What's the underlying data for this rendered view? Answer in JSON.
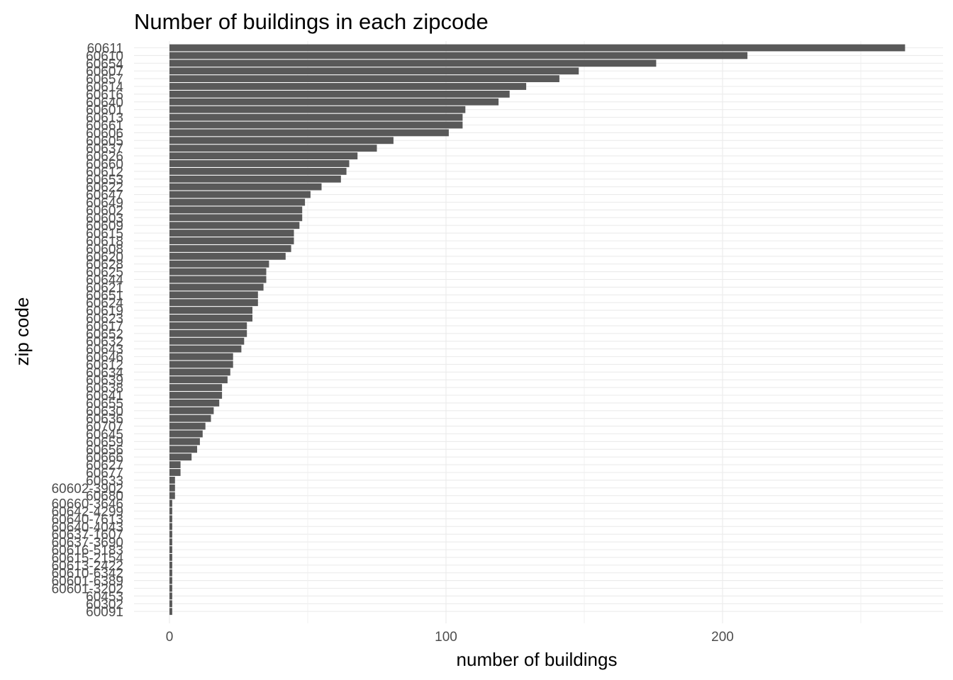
{
  "chart_data": {
    "type": "bar",
    "orientation": "horizontal",
    "title": "Number of buildings in each zipcode",
    "xlabel": "number of buildings",
    "ylabel": "zip code",
    "xlim": [
      0,
      280
    ],
    "x_ticks": [
      0,
      100,
      200
    ],
    "grid": true,
    "bar_color": "#595959",
    "categories": [
      "60611",
      "60610",
      "60654",
      "60607",
      "60657",
      "60614",
      "60616",
      "60640",
      "60601",
      "60613",
      "60661",
      "60606",
      "60605",
      "60637",
      "60626",
      "60660",
      "60612",
      "60653",
      "60622",
      "60647",
      "60649",
      "60602",
      "60603",
      "60609",
      "60615",
      "60618",
      "60608",
      "60620",
      "60628",
      "60625",
      "60644",
      "60621",
      "60651",
      "60624",
      "60619",
      "60623",
      "60617",
      "60652",
      "60632",
      "60643",
      "60646",
      "60612b",
      "60634",
      "60639",
      "60638",
      "60641",
      "60655",
      "60630",
      "60636",
      "60707",
      "60645",
      "60659",
      "60656",
      "60666",
      "60627",
      "60677",
      "60633",
      "60602-3902",
      "60680",
      "60660-3646",
      "60642-4299",
      "60640-7613",
      "60640-4043",
      "60637-1607",
      "60637-3690",
      "60616-5183",
      "60615-2154",
      "60613-2422",
      "60610-6342",
      "60601-6389",
      "60601-3202",
      "60453",
      "60302",
      "60091"
    ],
    "values": [
      266,
      209,
      176,
      148,
      141,
      129,
      123,
      119,
      107,
      106,
      106,
      101,
      81,
      75,
      68,
      65,
      64,
      62,
      55,
      51,
      49,
      48,
      48,
      47,
      45,
      45,
      44,
      42,
      36,
      35,
      35,
      34,
      32,
      32,
      30,
      30,
      28,
      28,
      27,
      26,
      23,
      23,
      22,
      21,
      19,
      19,
      18,
      16,
      15,
      13,
      12,
      11,
      10,
      8,
      4,
      4,
      2,
      2,
      2,
      1,
      1,
      1,
      1,
      1,
      1,
      1,
      1,
      1,
      1,
      1,
      1,
      1,
      1,
      1
    ],
    "category_labels": [
      "60611",
      "60610",
      "60654",
      "60607",
      "60657",
      "60614",
      "60616",
      "60640",
      "60601",
      "60613",
      "60661",
      "60606",
      "60605",
      "60637",
      "60626",
      "60660",
      "60612",
      "60653",
      "60622",
      "60647",
      "60649",
      "60602",
      "60603",
      "60609",
      "60615",
      "60618",
      "60608",
      "60620",
      "60628",
      "60625",
      "60644",
      "60621",
      "60651",
      "60624",
      "60619",
      "60623",
      "60617",
      "60652",
      "60632",
      "60643",
      "60646",
      "60612",
      "60634",
      "60639",
      "60638",
      "60641",
      "60655",
      "60630",
      "60636",
      "60707",
      "60645",
      "60659",
      "60656",
      "60666",
      "60627",
      "60677",
      "60633",
      "60602-3902",
      "60680",
      "60660-3646",
      "60642-4299",
      "60640-7613",
      "60640-4043",
      "60637-1607",
      "60637-3690",
      "60616-5183",
      "60615-2154",
      "60613-2422",
      "60610-6342",
      "60601-6389",
      "60601-3202",
      "60453",
      "60302",
      "60091"
    ]
  }
}
